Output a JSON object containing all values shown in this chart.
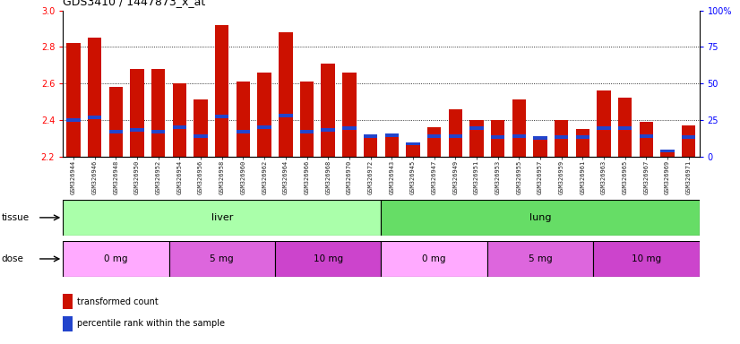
{
  "title": "GDS3410 / 1447873_x_at",
  "samples": [
    "GSM326944",
    "GSM326946",
    "GSM326948",
    "GSM326950",
    "GSM326952",
    "GSM326954",
    "GSM326956",
    "GSM326958",
    "GSM326960",
    "GSM326962",
    "GSM326964",
    "GSM326966",
    "GSM326968",
    "GSM326970",
    "GSM326972",
    "GSM326943",
    "GSM326945",
    "GSM326947",
    "GSM326949",
    "GSM326951",
    "GSM326953",
    "GSM326955",
    "GSM326957",
    "GSM326959",
    "GSM326961",
    "GSM326963",
    "GSM326965",
    "GSM326967",
    "GSM326969",
    "GSM326971"
  ],
  "transformed_count": [
    2.82,
    2.85,
    2.58,
    2.68,
    2.68,
    2.6,
    2.51,
    2.92,
    2.61,
    2.66,
    2.88,
    2.61,
    2.71,
    2.66,
    2.32,
    2.31,
    2.27,
    2.36,
    2.46,
    2.4,
    2.4,
    2.51,
    2.3,
    2.4,
    2.35,
    2.56,
    2.52,
    2.39,
    2.23,
    2.37
  ],
  "percentile_rank": [
    2.401,
    2.415,
    2.335,
    2.345,
    2.335,
    2.36,
    2.31,
    2.42,
    2.335,
    2.36,
    2.425,
    2.335,
    2.345,
    2.355,
    2.31,
    2.315,
    2.27,
    2.31,
    2.31,
    2.355,
    2.305,
    2.31,
    2.3,
    2.305,
    2.305,
    2.355,
    2.355,
    2.31,
    2.23,
    2.305
  ],
  "bar_color": "#cc1100",
  "blue_color": "#2244cc",
  "ylim": [
    2.2,
    3.0
  ],
  "yticks": [
    2.2,
    2.4,
    2.6,
    2.8,
    3.0
  ],
  "right_yticks": [
    0,
    25,
    50,
    75,
    100
  ],
  "grid_lines": [
    2.4,
    2.6,
    2.8
  ],
  "tissue_liver_color": "#aaffaa",
  "tissue_lung_color": "#66dd66",
  "dose_colors": [
    "#ffaaff",
    "#dd66dd",
    "#cc44cc"
  ],
  "dose_labels": [
    "0 mg",
    "5 mg",
    "10 mg"
  ],
  "liver_count": 15,
  "lung_count": 15,
  "dose_splits": [
    5,
    5,
    5
  ]
}
